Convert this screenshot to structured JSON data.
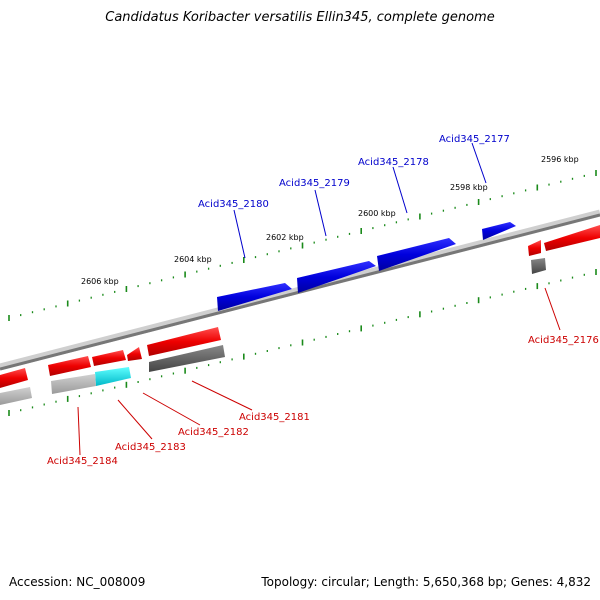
{
  "title": "Candidatus Koribacter versatilis Ellin345, complete genome",
  "footer": {
    "accession": "Accession: NC_008009",
    "summary": "Topology: circular; Length: 5,650,368 bp; Genes: 4,832"
  },
  "colors": {
    "forward": "#0000dd",
    "reverse": "#ee0000",
    "rna": "#00e0e0",
    "backbone": "#888888",
    "tick": "#1a8a1a",
    "label_blue": "#0000cc",
    "label_red": "#cc0000"
  },
  "position_labels": [
    "2596 kbp",
    "2598 kbp",
    "2600 kbp",
    "2602 kbp",
    "2604 kbp",
    "2606 kbp"
  ],
  "genes": {
    "acid2177": "Acid345_2177",
    "acid2178": "Acid345_2178",
    "acid2179": "Acid345_2179",
    "acid2180": "Acid345_2180",
    "acid2176": "Acid345_2176",
    "acid2181": "Acid345_2181",
    "acid2182": "Acid345_2182",
    "acid2183": "Acid345_2183",
    "acid2184": "Acid345_2184"
  }
}
